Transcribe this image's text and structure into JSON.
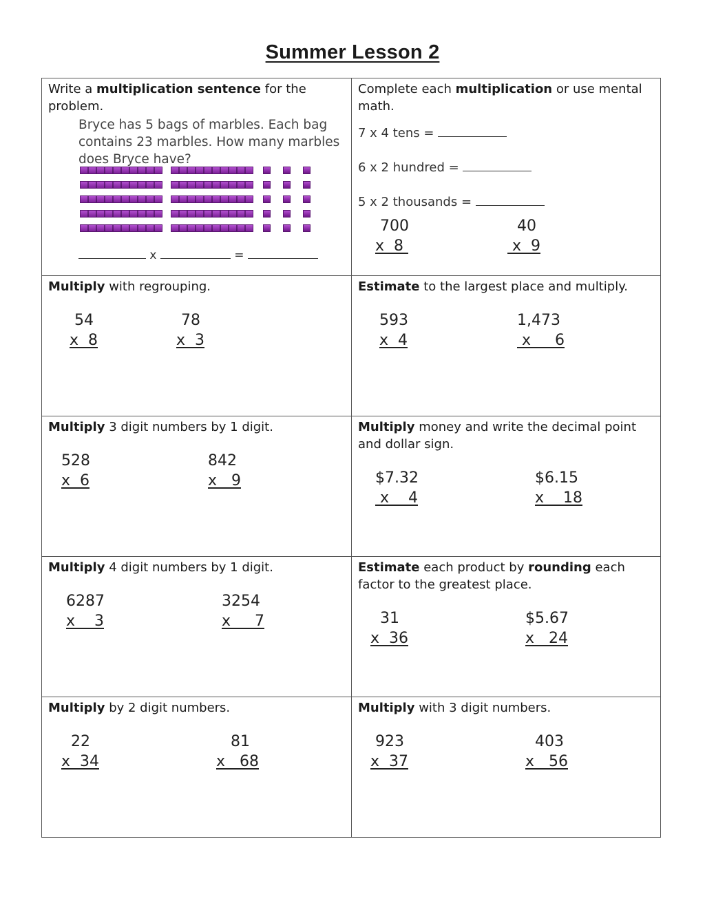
{
  "title": "Summer Lesson 2",
  "cells": {
    "c1": {
      "instr_pre": "Write a ",
      "instr_bold": "multiplication sentence",
      "instr_post": " for the problem.",
      "story": "Bryce has 5 bags of marbles. Each bag contains 23 marbles. How many marbles does Bryce have?",
      "equation_x": "x",
      "equation_eq": "="
    },
    "c2": {
      "instr_pre": "Complete each ",
      "instr_bold": "multiplication",
      "instr_post": " or use mental math.",
      "line1": "7 x 4 tens = ",
      "line2": "6 x 2 hundred = ",
      "line3": "5 x 2 thousands = ",
      "p1_top": " 700",
      "p1_bot": "x  8 ",
      "p2_top": "  40",
      "p2_bot": " x  9"
    },
    "c3": {
      "instr_bold": "Multiply",
      "instr_post": " with regrouping.",
      "p1_top": " 54",
      "p1_bot": "x  8",
      "p2_top": " 78",
      "p2_bot": "x  3"
    },
    "c4": {
      "instr_bold": "Estimate",
      "instr_post": " to the largest place and multiply.",
      "p1_top": "593",
      "p1_bot": "x  4",
      "p2_top": "1,473",
      "p2_bot": " x     6"
    },
    "c5": {
      "instr_bold": "Multiply",
      "instr_post": " 3 digit numbers by 1 digit.",
      "p1_top": "528",
      "p1_bot": "x  6",
      "p2_top": "842",
      "p2_bot": "x   9"
    },
    "c6": {
      "instr_bold": "Multiply",
      "instr_post": " money and write the decimal point and dollar sign.",
      "p1_top": "$7.32",
      "p1_bot": " x    4",
      "p2_top": "$6.15",
      "p2_bot": "x    18"
    },
    "c7": {
      "instr_bold": "Multiply",
      "instr_post": " 4 digit numbers by 1 digit.",
      "p1_top": "6287",
      "p1_bot": "x    3",
      "p2_top": "3254",
      "p2_bot": "x     7"
    },
    "c8": {
      "instr_bold1": "Estimate",
      "instr_mid": " each product by ",
      "instr_bold2": "rounding",
      "instr_post": " each factor to the greatest place.",
      "p1_top": "  31",
      "p1_bot": "x  36",
      "p2_top": "$5.67",
      "p2_bot": "x   24"
    },
    "c9": {
      "instr_bold": "Multiply",
      "instr_post": " by 2 digit numbers.",
      "p1_top": "  22",
      "p1_bot": "x  34",
      "p2_top": "   81",
      "p2_bot": "x   68"
    },
    "c10": {
      "instr_bold": "Multiply",
      "instr_post": " with 3 digit numbers.",
      "p1_top": " 923",
      "p1_bot": "x  37",
      "p2_top": "  403",
      "p2_bot": "x   56"
    }
  },
  "marble_blocks": {
    "bags": 5,
    "tens_per_bag": 2,
    "ones_per_bag": 3,
    "color": "#8a2aa6"
  }
}
